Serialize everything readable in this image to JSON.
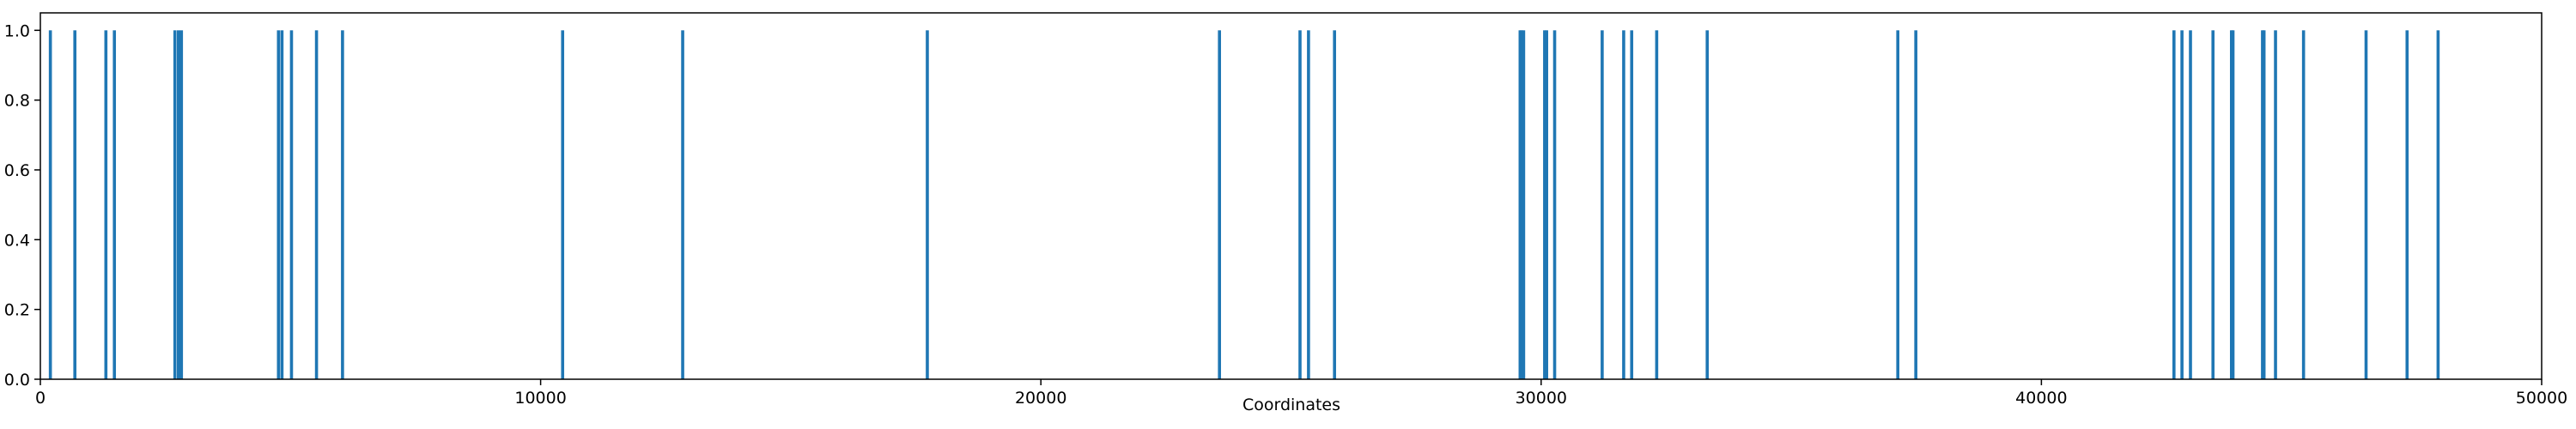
{
  "chart_data": {
    "type": "bar",
    "xlabel": "Coordinates",
    "x": [
      200,
      690,
      1310,
      1480,
      2690,
      2760,
      2820,
      4760,
      4830,
      5020,
      5520,
      6040,
      10440,
      12840,
      17730,
      23570,
      25180,
      25350,
      25870,
      29580,
      29610,
      29650,
      30070,
      30110,
      30270,
      31220,
      31650,
      31810,
      32310,
      33320,
      37130,
      37490,
      42650,
      42810,
      42980,
      43430,
      43800,
      43830,
      44420,
      44450,
      44680,
      45240,
      46490,
      47310,
      47930
    ],
    "values": [
      1,
      1,
      1,
      1,
      1,
      1,
      1,
      1,
      1,
      1,
      1,
      1,
      1,
      1,
      1,
      1,
      1,
      1,
      1,
      1,
      1,
      1,
      1,
      1,
      1,
      1,
      1,
      1,
      1,
      1,
      1,
      1,
      1,
      1,
      1,
      1,
      1,
      1,
      1,
      1,
      1,
      1,
      1,
      1,
      1
    ],
    "color": "#1f77b4",
    "xlim": [
      0,
      50000
    ],
    "xticks": [
      0,
      10000,
      20000,
      30000,
      40000,
      50000
    ],
    "ylim": [
      0,
      1.05
    ],
    "yticks": [
      {
        "value": 0,
        "label": "0.0"
      },
      0.2,
      0.4,
      0.6,
      0.8,
      {
        "value": 1,
        "label": "1.0"
      }
    ]
  }
}
